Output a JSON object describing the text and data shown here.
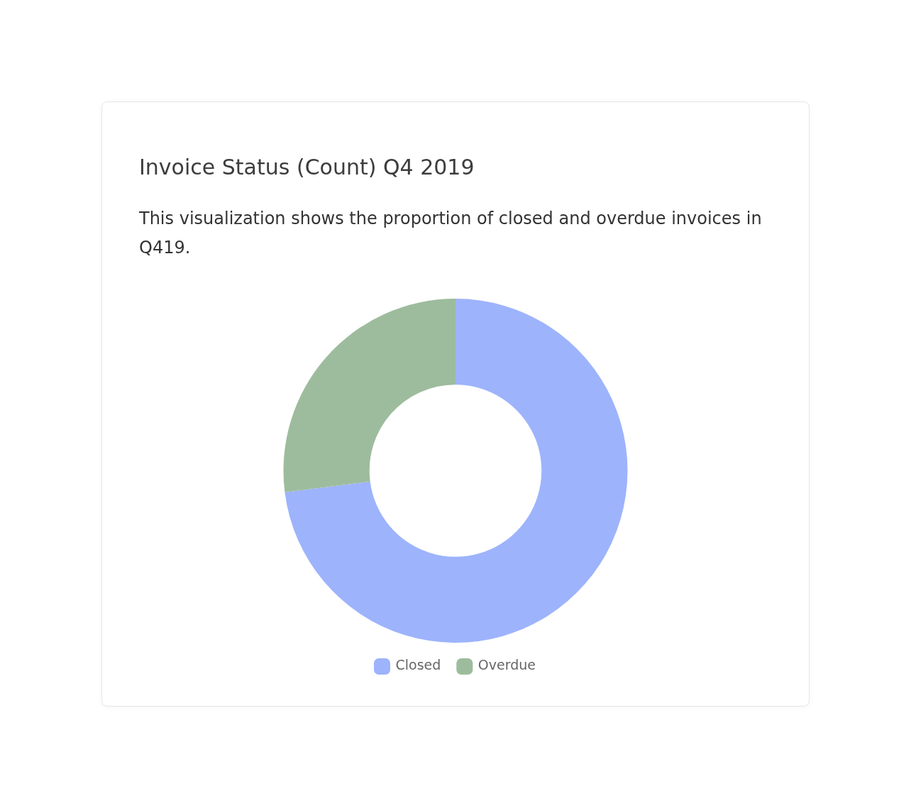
{
  "chart_data": {
    "type": "donut",
    "title": "Invoice Status (Count) Q4 2019",
    "subtitle": "This visualization shows the proportion of closed and overdue invoices in Q419.",
    "categories": [
      "Closed",
      "Overdue"
    ],
    "values": [
      73,
      27
    ],
    "colors": [
      "#9db3fc",
      "#9dbc9d"
    ],
    "legend": "bottom"
  }
}
